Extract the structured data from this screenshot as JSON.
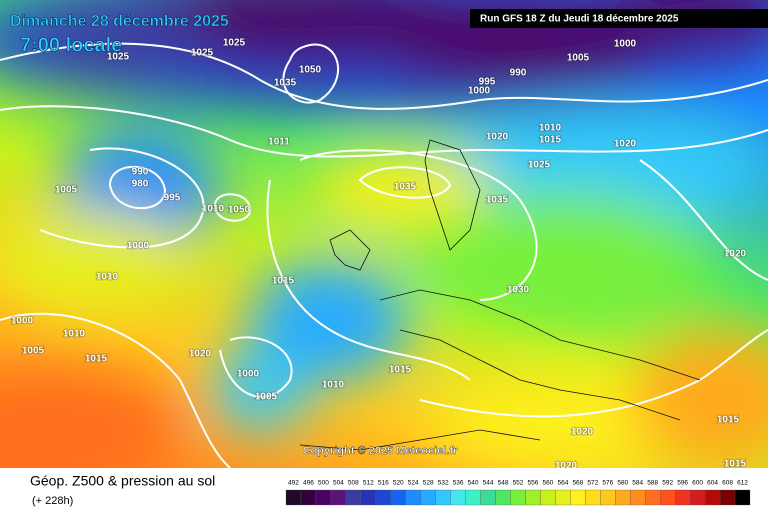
{
  "header": {
    "date": "Dimanche 28 décembre 2025",
    "time": "7:00 locale",
    "run": "Run GFS 18 Z du Jeudi 18 décembre 2025"
  },
  "map": {
    "copyright": "Copyright © 2025 Meteociel.fr",
    "isobar_labels": [
      1025,
      1025,
      1025,
      1050,
      1035,
      995,
      990,
      1000,
      1005,
      1000,
      1020,
      1010,
      1015,
      1020,
      1025,
      1035,
      1035,
      1011,
      1005,
      990,
      980,
      995,
      1010,
      1050,
      1000,
      1010,
      1015,
      1030,
      1020,
      1000,
      1010,
      1005,
      1015,
      1020,
      1000,
      1010,
      1005,
      1015,
      1020,
      1015,
      1015,
      1020
    ]
  },
  "legend": {
    "title": "Géop. Z500 & pression au sol",
    "lead": "(+ 228h)",
    "labels": [
      492,
      496,
      500,
      504,
      508,
      512,
      516,
      520,
      524,
      528,
      532,
      536,
      540,
      544,
      548,
      552,
      556,
      560,
      564,
      568,
      572,
      576,
      580,
      584,
      588,
      592,
      596,
      600,
      604,
      608,
      612
    ],
    "colors": [
      "#1e0a28",
      "#32003c",
      "#4b0064",
      "#5a1478",
      "#3c3ca0",
      "#2832b4",
      "#1e46d2",
      "#1464f0",
      "#1e8cff",
      "#28aaff",
      "#32c8ff",
      "#46e6f0",
      "#3cf0c8",
      "#3cdc96",
      "#50e664",
      "#78f03c",
      "#a0f028",
      "#c8f01e",
      "#e6f01e",
      "#fff01e",
      "#ffdc1e",
      "#ffc81e",
      "#ffaa1e",
      "#ff8c1e",
      "#ff6e1e",
      "#ff501e",
      "#f0321e",
      "#d21e1e",
      "#b40a0a",
      "#780000",
      "#000000"
    ]
  }
}
